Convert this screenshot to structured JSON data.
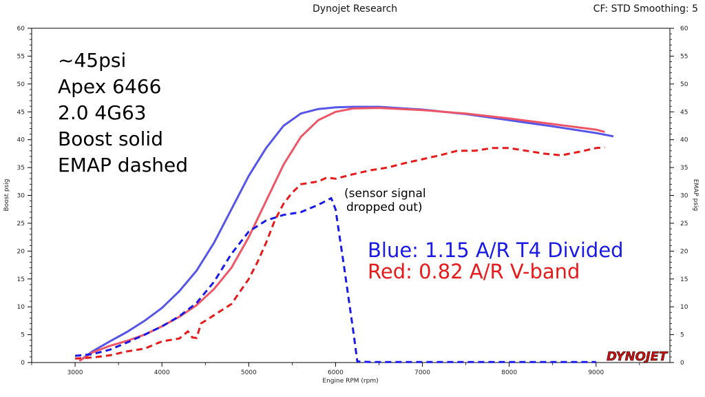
{
  "header": {
    "center": "Dynojet Research",
    "right": "CF: STD Smoothing: 5"
  },
  "notes": [
    "~45psi",
    "Apex 6466",
    "2.0 4G63",
    "Boost solid",
    "EMAP dashed"
  ],
  "annotation": [
    "(sensor signal",
    "dropped out)"
  ],
  "legend": [
    {
      "text": "Blue: 1.15 A/R T4 Divided",
      "color": "#1a1ae6"
    },
    {
      "text": "Red:  0.82 A/R V-band",
      "color": "#e61a1a"
    }
  ],
  "logo": "DYNOJET",
  "chart_data": {
    "type": "line",
    "xlabel": "Engine RPM  (rpm)",
    "ylabel_left": "Boost psig",
    "ylabel_right": "EMAP psig",
    "xlim": [
      2500,
      9850
    ],
    "ylim": [
      0,
      60
    ],
    "x_ticks": [
      3000,
      4000,
      5000,
      6000,
      7000,
      8000,
      9000
    ],
    "y_ticks": [
      0,
      5,
      10,
      15,
      20,
      25,
      30,
      35,
      40,
      45,
      50,
      55,
      60
    ],
    "grid": false,
    "series": [
      {
        "name": "Blue boost",
        "color": "#5555e8",
        "style": "solid",
        "x": [
          3050,
          3200,
          3400,
          3600,
          3800,
          4000,
          4200,
          4400,
          4600,
          4800,
          5000,
          5200,
          5400,
          5600,
          5800,
          6000,
          6200,
          6500,
          7000,
          7500,
          8000,
          8500,
          9000,
          9200
        ],
        "y": [
          0.3,
          2.0,
          3.8,
          5.5,
          7.5,
          9.8,
          12.8,
          16.5,
          21.5,
          27.5,
          33.5,
          38.5,
          42.5,
          44.7,
          45.5,
          45.8,
          45.9,
          45.9,
          45.4,
          44.6,
          43.5,
          42.4,
          41.2,
          40.6
        ]
      },
      {
        "name": "Red boost",
        "color": "#ee5566",
        "style": "solid",
        "x": [
          3050,
          3200,
          3400,
          3600,
          3800,
          4000,
          4200,
          4400,
          4600,
          4800,
          5000,
          5200,
          5400,
          5600,
          5800,
          6000,
          6200,
          6500,
          7000,
          7500,
          8000,
          8500,
          9000,
          9100
        ],
        "y": [
          0.3,
          1.8,
          3.0,
          3.9,
          5.0,
          6.5,
          8.2,
          10.3,
          13.2,
          17.0,
          22.5,
          29.0,
          35.5,
          40.5,
          43.5,
          45.0,
          45.6,
          45.7,
          45.3,
          44.7,
          43.8,
          42.8,
          41.8,
          41.4
        ]
      },
      {
        "name": "Blue EMAP",
        "color": "#1a1ae6",
        "style": "dashed",
        "x": [
          3000,
          3200,
          3400,
          3600,
          3800,
          4000,
          4200,
          4400,
          4600,
          4800,
          5000,
          5200,
          5400,
          5600,
          5800,
          5950,
          6000,
          6100,
          6200,
          6250,
          6400,
          7000,
          8000,
          9000
        ],
        "y": [
          1.2,
          1.5,
          2.3,
          3.6,
          5.0,
          6.5,
          8.3,
          10.7,
          14.5,
          19.5,
          23.5,
          25.5,
          26.5,
          27.0,
          28.3,
          29.5,
          27.5,
          17.0,
          6.0,
          0.2,
          0.1,
          0.1,
          0.1,
          0.1
        ]
      },
      {
        "name": "Red EMAP",
        "color": "#e61a1a",
        "style": "dashed",
        "x": [
          3000,
          3200,
          3400,
          3600,
          3800,
          4000,
          4200,
          4300,
          4350,
          4400,
          4450,
          4600,
          4800,
          5000,
          5100,
          5200,
          5300,
          5400,
          5500,
          5600,
          5800,
          5900,
          6000,
          6200,
          6400,
          6600,
          6800,
          7000,
          7200,
          7400,
          7600,
          7800,
          8000,
          8200,
          8400,
          8600,
          8800,
          9000,
          9100
        ],
        "y": [
          0.7,
          0.9,
          1.3,
          2.0,
          2.5,
          3.8,
          4.3,
          5.6,
          4.5,
          4.4,
          7.0,
          8.5,
          10.5,
          15.0,
          18.0,
          21.5,
          25.5,
          28.5,
          30.5,
          32.0,
          32.5,
          33.2,
          33.0,
          33.8,
          34.5,
          35.0,
          35.8,
          36.5,
          37.2,
          38.0,
          38.0,
          38.5,
          38.5,
          38.0,
          37.5,
          37.2,
          37.8,
          38.5,
          38.6
        ]
      }
    ]
  }
}
